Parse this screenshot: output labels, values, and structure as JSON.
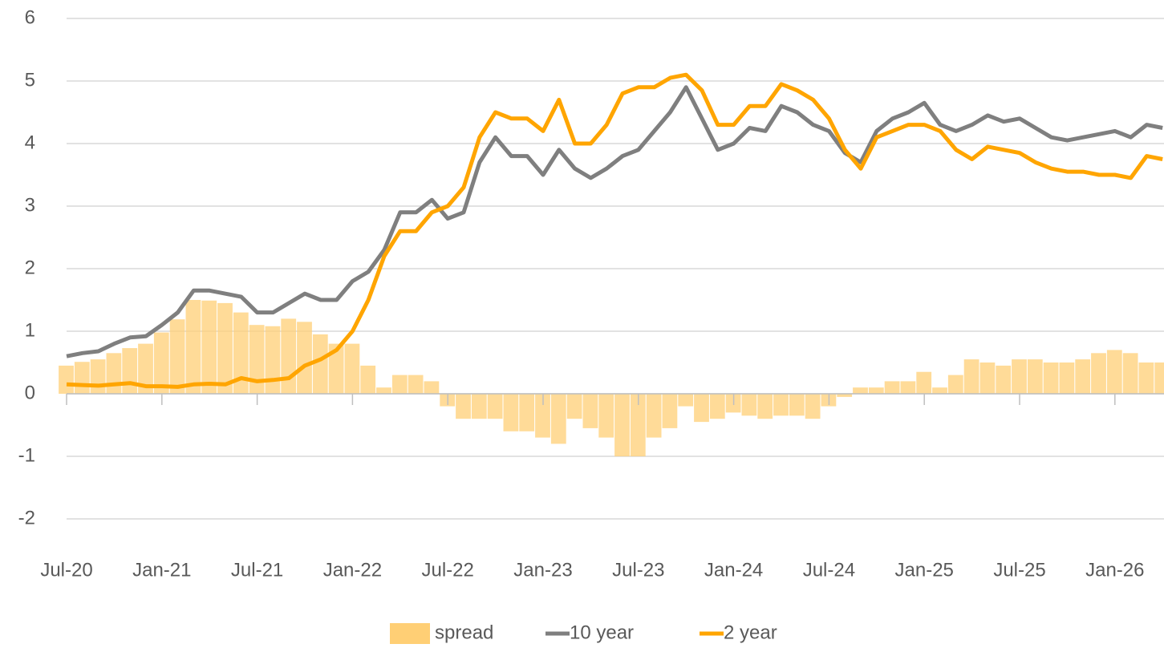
{
  "chart_data": {
    "type": "bar-line",
    "categories": [
      "Jul-20",
      null,
      null,
      null,
      null,
      null,
      "Jan-21",
      null,
      null,
      null,
      null,
      null,
      "Jul-21",
      null,
      null,
      null,
      null,
      null,
      "Jan-22",
      null,
      null,
      null,
      null,
      null,
      "Jul-22",
      null,
      null,
      null,
      null,
      null,
      "Jan-23",
      null,
      null,
      null,
      null,
      null,
      "Jul-23",
      null,
      null,
      null,
      null,
      null,
      "Jan-24",
      null,
      null,
      null,
      null,
      null,
      "Jul-24",
      null,
      null,
      null,
      null,
      null,
      "Jan-25",
      null,
      null,
      null,
      null,
      null,
      "Jul-25",
      null,
      null,
      null,
      null,
      null,
      "Jan-26",
      null,
      null,
      null
    ],
    "series": [
      {
        "name": "spread",
        "type": "bar",
        "color": "#ffcf75",
        "values": [
          0.45,
          0.51,
          0.55,
          0.65,
          0.73,
          0.8,
          0.98,
          1.19,
          1.5,
          1.49,
          1.45,
          1.3,
          1.1,
          1.08,
          1.2,
          1.15,
          0.95,
          0.8,
          0.8,
          0.45,
          0.1,
          0.3,
          0.3,
          0.2,
          -0.2,
          -0.4,
          -0.4,
          -0.4,
          -0.6,
          -0.6,
          -0.7,
          -0.8,
          -0.4,
          -0.55,
          -0.7,
          -1.0,
          -1.0,
          -0.7,
          -0.55,
          -0.2,
          -0.45,
          -0.4,
          -0.3,
          -0.35,
          -0.4,
          -0.35,
          -0.35,
          -0.4,
          -0.2,
          -0.05,
          0.1,
          0.1,
          0.2,
          0.2,
          0.35,
          0.1,
          0.3,
          0.55,
          0.5,
          0.45,
          0.55,
          0.55,
          0.5,
          0.5,
          0.55,
          0.65,
          0.7,
          0.65,
          0.5,
          0.5
        ]
      },
      {
        "name": "10 year",
        "type": "line",
        "color": "#7f7f7f",
        "values": [
          0.6,
          0.65,
          0.68,
          0.8,
          0.9,
          0.92,
          1.1,
          1.3,
          1.65,
          1.65,
          1.6,
          1.55,
          1.3,
          1.3,
          1.45,
          1.6,
          1.5,
          1.5,
          1.8,
          1.95,
          2.3,
          2.9,
          2.9,
          3.1,
          2.8,
          2.9,
          3.7,
          4.1,
          3.8,
          3.8,
          3.5,
          3.9,
          3.6,
          3.45,
          3.6,
          3.8,
          3.9,
          4.2,
          4.5,
          4.9,
          4.4,
          3.9,
          4.0,
          4.25,
          4.2,
          4.6,
          4.5,
          4.3,
          4.2,
          3.85,
          3.7,
          4.2,
          4.4,
          4.5,
          4.65,
          4.3,
          4.2,
          4.3,
          4.45,
          4.35,
          4.4,
          4.25,
          4.1,
          4.05,
          4.1,
          4.15,
          4.2,
          4.1,
          4.3,
          4.25
        ]
      },
      {
        "name": "2 year",
        "type": "line",
        "color": "#ffa500",
        "values": [
          0.15,
          0.14,
          0.13,
          0.15,
          0.17,
          0.12,
          0.12,
          0.11,
          0.15,
          0.16,
          0.15,
          0.25,
          0.2,
          0.22,
          0.25,
          0.45,
          0.55,
          0.7,
          1.0,
          1.5,
          2.2,
          2.6,
          2.6,
          2.9,
          3.0,
          3.3,
          4.1,
          4.5,
          4.4,
          4.4,
          4.2,
          4.7,
          4.0,
          4.0,
          4.3,
          4.8,
          4.9,
          4.9,
          5.05,
          5.1,
          4.85,
          4.3,
          4.3,
          4.6,
          4.6,
          4.95,
          4.85,
          4.7,
          4.4,
          3.9,
          3.6,
          4.1,
          4.2,
          4.3,
          4.3,
          4.2,
          3.9,
          3.75,
          3.95,
          3.9,
          3.85,
          3.7,
          3.6,
          3.55,
          3.55,
          3.5,
          3.5,
          3.45,
          3.8,
          3.75
        ]
      }
    ],
    "ylim": [
      -2,
      6
    ],
    "yticks": [
      -2,
      -1,
      0,
      1,
      2,
      3,
      4,
      5,
      6
    ],
    "grid": true,
    "legend": "bottom"
  }
}
